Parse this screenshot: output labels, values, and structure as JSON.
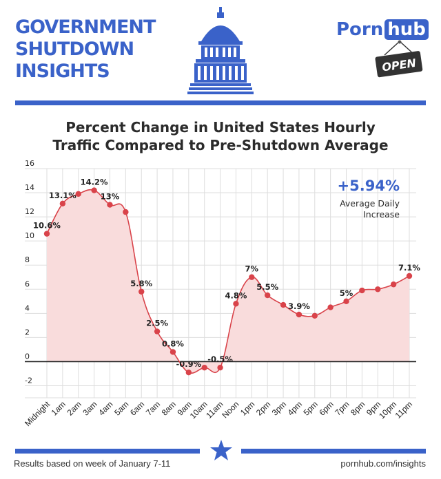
{
  "header": {
    "title_lines": [
      "GOVERNMENT",
      "SHUTDOWN",
      "INSIGHTS"
    ],
    "logo_part1": "Porn",
    "logo_part2": "hub",
    "sign_text": "OPEN"
  },
  "colors": {
    "brand_blue": "#3a62c9",
    "line_red": "#d9434a",
    "fill_pink": "#f9dcdc",
    "grid": "#dddddd"
  },
  "summary": {
    "value": "+5.94%",
    "label_line1": "Average Daily",
    "label_line2": "Increase"
  },
  "footer": {
    "left": "Results based on week of January 7-11",
    "right": "pornhub.com/insights"
  },
  "chart_data": {
    "type": "area",
    "title_line1": "Percent Change in United States Hourly",
    "title_line2": "Traffic Compared to Pre-Shutdown Average",
    "categories": [
      "Midnight",
      "1am",
      "2am",
      "3am",
      "4am",
      "5am",
      "6am",
      "7am",
      "8am",
      "9am",
      "10am",
      "11am",
      "Noon",
      "1pm",
      "2pm",
      "3pm",
      "4pm",
      "5pm",
      "6pm",
      "7pm",
      "8pm",
      "9pm",
      "10pm",
      "11pm"
    ],
    "values": [
      10.6,
      13.1,
      13.9,
      14.2,
      13.0,
      12.4,
      5.8,
      2.5,
      0.8,
      -0.9,
      -0.5,
      -0.5,
      4.8,
      7.0,
      5.5,
      4.7,
      3.9,
      3.8,
      4.5,
      5.0,
      5.9,
      6.0,
      6.4,
      7.1
    ],
    "data_labels": [
      "10.6%",
      "13.1%",
      "",
      "14.2%",
      "13%",
      "",
      "5.8%",
      "2.5%",
      "0.8%",
      "-0.9%",
      "",
      "-0.5%",
      "4.8%",
      "7%",
      "5.5%",
      "",
      "3.9%",
      "",
      "",
      "5%",
      "",
      "",
      "",
      "7.1%"
    ],
    "yticks": [
      "16",
      "14",
      "12",
      "10",
      "8",
      "6",
      "4",
      "2",
      "0",
      "-2"
    ],
    "ylim": [
      -3,
      16
    ],
    "grid": true,
    "zero_line": true
  }
}
